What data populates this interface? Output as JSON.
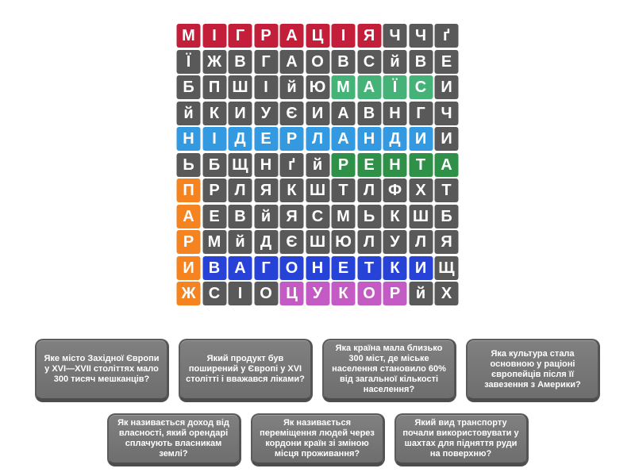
{
  "palette": {
    "page_background": "#ffffff",
    "tile_default": "#595959",
    "tile_text": "#ffffff",
    "card_text": "#ffffff",
    "highlights": {
      "red": "#c41f3a",
      "emerald": "#45b377",
      "sky": "#3399e0",
      "green": "#2f9148",
      "orange": "#f5831f",
      "royal": "#2742d6",
      "orchid": "#c45bc4"
    }
  },
  "wordsearch": {
    "rows": 11,
    "cols": 11,
    "found_words": [
      {
        "word": "МІГРАЦІЯ",
        "color": "red"
      },
      {
        "word": "МАЇС",
        "color": "emerald"
      },
      {
        "word": "НІДЕРЛАНДИ",
        "color": "sky"
      },
      {
        "word": "РЕНТА",
        "color": "green"
      },
      {
        "word": "ПАРИЖ",
        "color": "orange"
      },
      {
        "word": "ВАГОНЕТКИ",
        "color": "royal"
      },
      {
        "word": "ЦУКОР",
        "color": "orchid"
      }
    ],
    "grid": [
      [
        {
          "c": "М",
          "h": "red"
        },
        {
          "c": "І",
          "h": "red"
        },
        {
          "c": "Г",
          "h": "red"
        },
        {
          "c": "Р",
          "h": "red"
        },
        {
          "c": "А",
          "h": "red"
        },
        {
          "c": "Ц",
          "h": "red"
        },
        {
          "c": "І",
          "h": "red"
        },
        {
          "c": "Я",
          "h": "red"
        },
        {
          "c": "Ч",
          "h": ""
        },
        {
          "c": "Ч",
          "h": ""
        },
        {
          "c": "ґ",
          "h": ""
        }
      ],
      [
        {
          "c": "Ї",
          "h": ""
        },
        {
          "c": "Ж",
          "h": ""
        },
        {
          "c": "В",
          "h": ""
        },
        {
          "c": "Г",
          "h": ""
        },
        {
          "c": "А",
          "h": ""
        },
        {
          "c": "О",
          "h": ""
        },
        {
          "c": "В",
          "h": ""
        },
        {
          "c": "С",
          "h": ""
        },
        {
          "c": "й",
          "h": ""
        },
        {
          "c": "В",
          "h": ""
        },
        {
          "c": "Е",
          "h": ""
        }
      ],
      [
        {
          "c": "Б",
          "h": ""
        },
        {
          "c": "П",
          "h": ""
        },
        {
          "c": "Ш",
          "h": ""
        },
        {
          "c": "І",
          "h": ""
        },
        {
          "c": "й",
          "h": ""
        },
        {
          "c": "Ю",
          "h": ""
        },
        {
          "c": "М",
          "h": "emerald"
        },
        {
          "c": "А",
          "h": "emerald"
        },
        {
          "c": "Ї",
          "h": "emerald"
        },
        {
          "c": "С",
          "h": "emerald"
        },
        {
          "c": "И",
          "h": ""
        }
      ],
      [
        {
          "c": "й",
          "h": ""
        },
        {
          "c": "К",
          "h": ""
        },
        {
          "c": "И",
          "h": ""
        },
        {
          "c": "У",
          "h": ""
        },
        {
          "c": "Є",
          "h": ""
        },
        {
          "c": "И",
          "h": ""
        },
        {
          "c": "А",
          "h": ""
        },
        {
          "c": "В",
          "h": ""
        },
        {
          "c": "Н",
          "h": ""
        },
        {
          "c": "Г",
          "h": ""
        },
        {
          "c": "Ч",
          "h": ""
        }
      ],
      [
        {
          "c": "Н",
          "h": "sky"
        },
        {
          "c": "І",
          "h": "sky"
        },
        {
          "c": "Д",
          "h": "sky"
        },
        {
          "c": "Е",
          "h": "sky"
        },
        {
          "c": "Р",
          "h": "sky"
        },
        {
          "c": "Л",
          "h": "sky"
        },
        {
          "c": "А",
          "h": "sky"
        },
        {
          "c": "Н",
          "h": "sky"
        },
        {
          "c": "Д",
          "h": "sky"
        },
        {
          "c": "И",
          "h": "sky"
        },
        {
          "c": "И",
          "h": ""
        }
      ],
      [
        {
          "c": "Ь",
          "h": ""
        },
        {
          "c": "Б",
          "h": ""
        },
        {
          "c": "Щ",
          "h": ""
        },
        {
          "c": "Н",
          "h": ""
        },
        {
          "c": "ґ",
          "h": ""
        },
        {
          "c": "й",
          "h": ""
        },
        {
          "c": "Р",
          "h": "green"
        },
        {
          "c": "Е",
          "h": "green"
        },
        {
          "c": "Н",
          "h": "green"
        },
        {
          "c": "Т",
          "h": "green"
        },
        {
          "c": "А",
          "h": "green"
        }
      ],
      [
        {
          "c": "П",
          "h": "orange"
        },
        {
          "c": "Р",
          "h": ""
        },
        {
          "c": "Л",
          "h": ""
        },
        {
          "c": "Я",
          "h": ""
        },
        {
          "c": "К",
          "h": ""
        },
        {
          "c": "Ш",
          "h": ""
        },
        {
          "c": "Т",
          "h": ""
        },
        {
          "c": "Л",
          "h": ""
        },
        {
          "c": "Ф",
          "h": ""
        },
        {
          "c": "Х",
          "h": ""
        },
        {
          "c": "Т",
          "h": ""
        }
      ],
      [
        {
          "c": "А",
          "h": "orange"
        },
        {
          "c": "Е",
          "h": ""
        },
        {
          "c": "В",
          "h": ""
        },
        {
          "c": "й",
          "h": ""
        },
        {
          "c": "Я",
          "h": ""
        },
        {
          "c": "С",
          "h": ""
        },
        {
          "c": "М",
          "h": ""
        },
        {
          "c": "Ь",
          "h": ""
        },
        {
          "c": "К",
          "h": ""
        },
        {
          "c": "Ш",
          "h": ""
        },
        {
          "c": "Б",
          "h": ""
        }
      ],
      [
        {
          "c": "Р",
          "h": "orange"
        },
        {
          "c": "М",
          "h": ""
        },
        {
          "c": "й",
          "h": ""
        },
        {
          "c": "Д",
          "h": ""
        },
        {
          "c": "Є",
          "h": ""
        },
        {
          "c": "Ш",
          "h": ""
        },
        {
          "c": "Ю",
          "h": ""
        },
        {
          "c": "Л",
          "h": ""
        },
        {
          "c": "У",
          "h": ""
        },
        {
          "c": "Л",
          "h": ""
        },
        {
          "c": "Я",
          "h": ""
        }
      ],
      [
        {
          "c": "И",
          "h": "orange"
        },
        {
          "c": "В",
          "h": "royal"
        },
        {
          "c": "А",
          "h": "royal"
        },
        {
          "c": "Г",
          "h": "royal"
        },
        {
          "c": "О",
          "h": "royal"
        },
        {
          "c": "Н",
          "h": "royal"
        },
        {
          "c": "Е",
          "h": "royal"
        },
        {
          "c": "Т",
          "h": "royal"
        },
        {
          "c": "К",
          "h": "royal"
        },
        {
          "c": "И",
          "h": "royal"
        },
        {
          "c": "Щ",
          "h": ""
        }
      ],
      [
        {
          "c": "Ж",
          "h": "orange"
        },
        {
          "c": "С",
          "h": ""
        },
        {
          "c": "І",
          "h": ""
        },
        {
          "c": "О",
          "h": ""
        },
        {
          "c": "Ц",
          "h": "orchid"
        },
        {
          "c": "У",
          "h": "orchid"
        },
        {
          "c": "К",
          "h": "orchid"
        },
        {
          "c": "О",
          "h": "orchid"
        },
        {
          "c": "Р",
          "h": "orchid"
        },
        {
          "c": "й",
          "h": ""
        },
        {
          "c": "Х",
          "h": ""
        }
      ]
    ]
  },
  "clues": {
    "layout_rows": [
      4,
      3
    ],
    "items": [
      {
        "text": "Яке місто Західної Європи у XVI—XVII століттях мало 300 тисяч мешканців?"
      },
      {
        "text": "Який продукт був поширений у Європі у XVI столітті і вважався ліками?"
      },
      {
        "text": "Яка країна мала близько 300 міст, де міське населення становило 60% від загальної кількості населення?"
      },
      {
        "text": "Яка культура стала основною у раціоні європейців після її завезення з Америки?"
      },
      {
        "text": "Як називається доход від власності, який орендарі сплачують власникам землі?"
      },
      {
        "text": "Як називається переміщення людей через кордони країн зі зміною місця проживання?"
      },
      {
        "text": "Який вид транспорту почали використовувати у шахтах для підняття руди на поверхню?"
      }
    ]
  }
}
